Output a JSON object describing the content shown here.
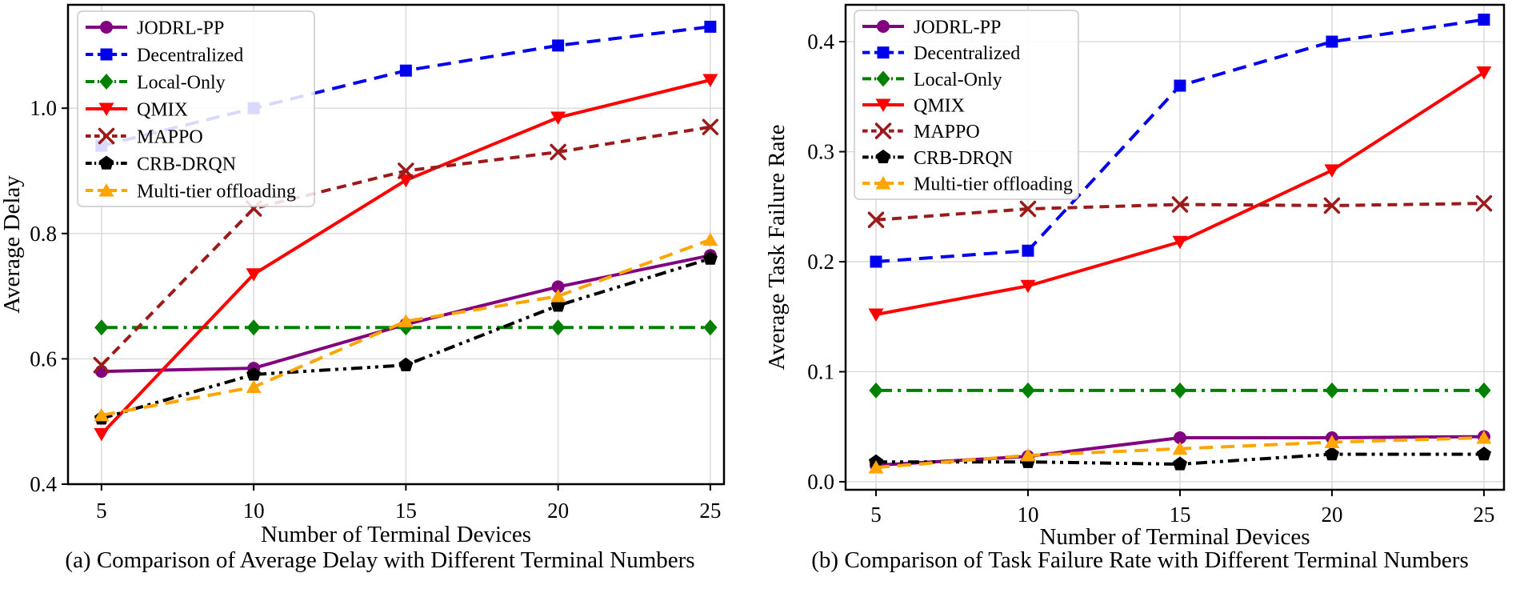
{
  "figure": {
    "background": "#ffffff",
    "text_color": "#000000",
    "grid_color": "#d9d9d9"
  },
  "chart_data": [
    {
      "type": "line",
      "caption": "(a) Comparison of Average Delay with Different Terminal Numbers",
      "xlabel": "Number of Terminal Devices",
      "ylabel": "Average Delay",
      "x": [
        5,
        10,
        15,
        20,
        25
      ],
      "xtick_labels": [
        "5",
        "10",
        "15",
        "20",
        "25"
      ],
      "yticks": [
        0.4,
        0.6,
        0.8,
        1.0
      ],
      "ytick_labels": [
        "0.4",
        "0.6",
        "0.8",
        "1.0"
      ],
      "xlim": [
        3.9,
        25.45
      ],
      "ylim": [
        0.4,
        1.165
      ],
      "grid": true,
      "legend_position": "upper-left",
      "series": [
        {
          "name": "JODRL-PP",
          "color": "#800080",
          "marker": "circle",
          "linestyle": "solid",
          "values": [
            0.58,
            0.585,
            0.655,
            0.715,
            0.765
          ]
        },
        {
          "name": "Decentralized",
          "color": "#0000ee",
          "marker": "square",
          "linestyle": "dashed",
          "values": [
            0.94,
            1.0,
            1.06,
            1.1,
            1.13
          ]
        },
        {
          "name": "Local-Only",
          "color": "#008000",
          "marker": "diamond",
          "linestyle": "dashdot",
          "values": [
            0.65,
            0.65,
            0.65,
            0.65,
            0.65
          ]
        },
        {
          "name": "QMIX",
          "color": "#ff0000",
          "marker": "triangle-down",
          "linestyle": "solid",
          "values": [
            0.48,
            0.735,
            0.885,
            0.985,
            1.045
          ]
        },
        {
          "name": "MAPPO",
          "color": "#9b1b1b",
          "marker": "x",
          "linestyle": "dashed-short",
          "values": [
            0.59,
            0.84,
            0.9,
            0.93,
            0.97
          ]
        },
        {
          "name": "CRB-DRQN",
          "color": "#000000",
          "marker": "pentagon",
          "linestyle": "dashdotdot",
          "values": [
            0.505,
            0.575,
            0.59,
            0.685,
            0.76
          ]
        },
        {
          "name": "Multi-tier offloading",
          "color": "#ffa500",
          "marker": "triangle-up",
          "linestyle": "dashed",
          "values": [
            0.51,
            0.555,
            0.66,
            0.7,
            0.79
          ]
        }
      ]
    },
    {
      "type": "line",
      "caption": "(b) Comparison of Task Failure Rate with Different Terminal Numbers",
      "xlabel": "Number of Terminal Devices",
      "ylabel": "Average Task Failure Rate",
      "x": [
        5,
        10,
        15,
        20,
        25
      ],
      "xtick_labels": [
        "5",
        "10",
        "15",
        "20",
        "25"
      ],
      "yticks": [
        0.0,
        0.1,
        0.2,
        0.3,
        0.4
      ],
      "ytick_labels": [
        "0.0",
        "0.1",
        "0.2",
        "0.3",
        "0.4"
      ],
      "xlim": [
        4.0,
        25.66
      ],
      "ylim": [
        -0.0073,
        0.4335
      ],
      "grid": true,
      "legend_position": "upper-left",
      "series": [
        {
          "name": "JODRL-PP",
          "color": "#800080",
          "marker": "circle",
          "linestyle": "solid",
          "values": [
            0.015,
            0.023,
            0.04,
            0.04,
            0.041
          ]
        },
        {
          "name": "Decentralized",
          "color": "#0000ee",
          "marker": "square",
          "linestyle": "dashed",
          "values": [
            0.2,
            0.21,
            0.36,
            0.4,
            0.42
          ]
        },
        {
          "name": "Local-Only",
          "color": "#008000",
          "marker": "diamond",
          "linestyle": "dashdot",
          "values": [
            0.083,
            0.083,
            0.083,
            0.083,
            0.083
          ]
        },
        {
          "name": "QMIX",
          "color": "#ff0000",
          "marker": "triangle-down",
          "linestyle": "solid",
          "values": [
            0.152,
            0.178,
            0.218,
            0.283,
            0.372
          ]
        },
        {
          "name": "MAPPO",
          "color": "#9b1b1b",
          "marker": "x",
          "linestyle": "dashed-short",
          "values": [
            0.238,
            0.248,
            0.252,
            0.251,
            0.253
          ]
        },
        {
          "name": "CRB-DRQN",
          "color": "#000000",
          "marker": "pentagon",
          "linestyle": "dashdotdot",
          "values": [
            0.018,
            0.018,
            0.016,
            0.025,
            0.025
          ]
        },
        {
          "name": "Multi-tier offloading",
          "color": "#ffa500",
          "marker": "triangle-up",
          "linestyle": "dashed",
          "values": [
            0.013,
            0.024,
            0.03,
            0.036,
            0.04
          ]
        }
      ]
    }
  ]
}
